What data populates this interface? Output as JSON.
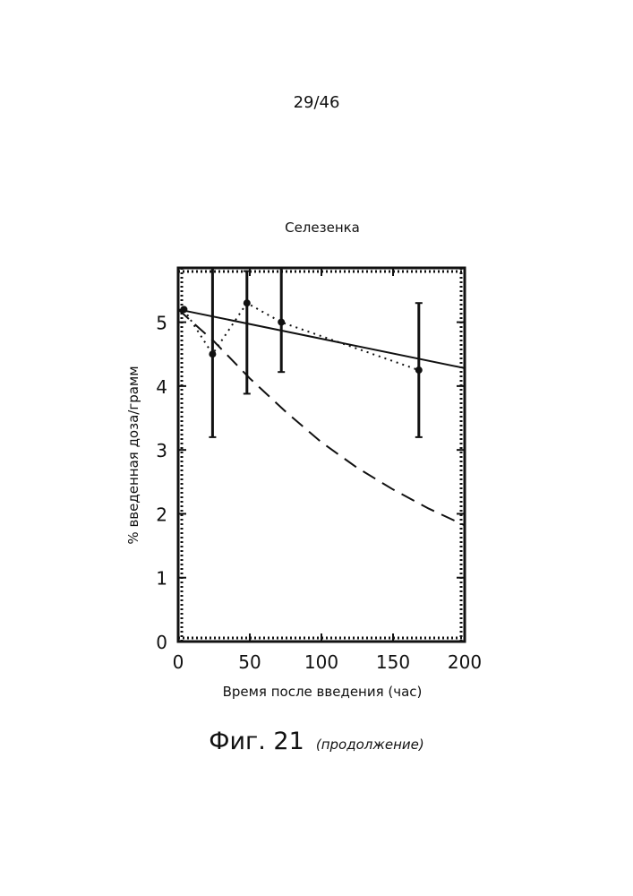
{
  "page": {
    "number": "29/46"
  },
  "figure": {
    "caption": "Фиг. 21",
    "caption_note": "(продолжение)"
  },
  "chart_data": {
    "type": "line",
    "title": "Селезенка",
    "xlabel": "Время после введения (час)",
    "ylabel": "% введенная доза/грамм",
    "xlim": [
      0,
      200
    ],
    "ylim": [
      0,
      5.85
    ],
    "x_ticks": [
      0,
      50,
      100,
      150,
      200
    ],
    "y_ticks": [
      0,
      1,
      2,
      3,
      4,
      5
    ],
    "grid": false,
    "legend": "none",
    "colors": {
      "ink": "#111111"
    },
    "points": [
      {
        "x": 4,
        "y": 5.2,
        "err_low": 0.0,
        "err_high": 0.0
      },
      {
        "x": 24,
        "y": 4.5,
        "err_low": 1.3,
        "err_high": 1.35
      },
      {
        "x": 48,
        "y": 5.3,
        "err_low": 1.42,
        "err_high": 0.5
      },
      {
        "x": 72,
        "y": 5.0,
        "err_low": 0.78,
        "err_high": 0.85
      },
      {
        "x": 168,
        "y": 4.25,
        "err_low": 1.05,
        "err_high": 1.05
      }
    ],
    "series": [
      {
        "style": "solid",
        "x": [
          0,
          200
        ],
        "y": [
          5.2,
          4.28
        ]
      },
      {
        "style": "dotted",
        "x": [
          4,
          24,
          48,
          72,
          168
        ],
        "y": [
          5.2,
          4.5,
          5.3,
          5.0,
          4.25
        ]
      },
      {
        "style": "dashed",
        "x": [
          0,
          25,
          50,
          75,
          100,
          125,
          150,
          175,
          200
        ],
        "y": [
          5.2,
          4.7,
          4.12,
          3.6,
          3.12,
          2.72,
          2.38,
          2.08,
          1.82
        ]
      }
    ]
  }
}
